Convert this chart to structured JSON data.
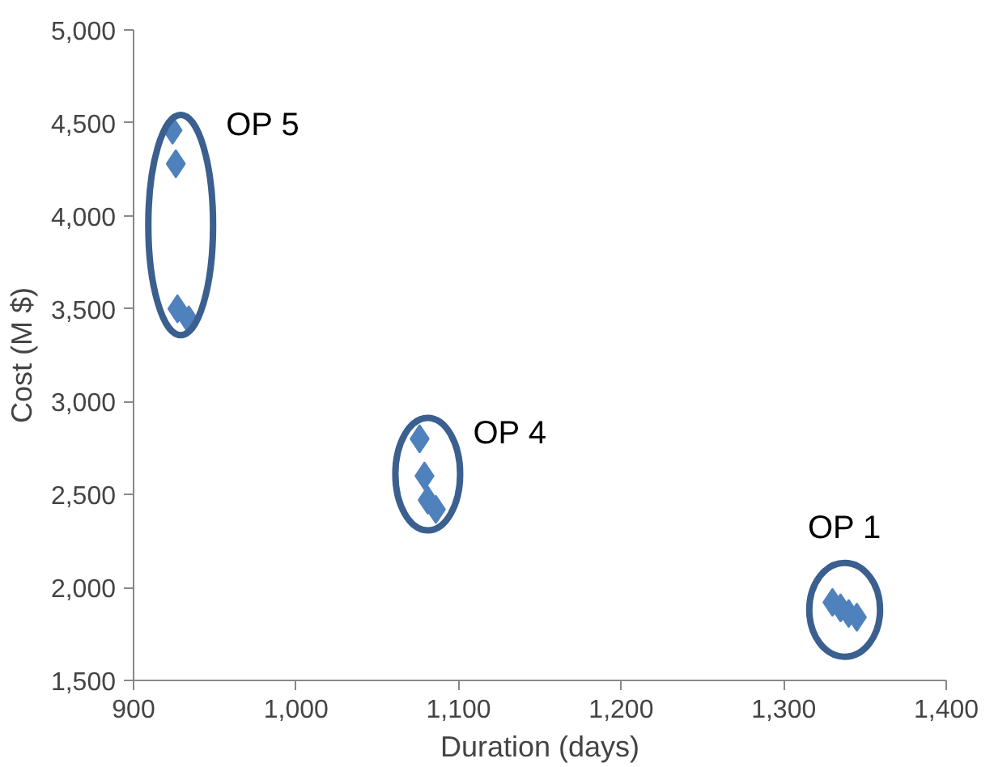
{
  "chart_data": {
    "type": "scatter",
    "xlabel": "Duration (days)",
    "ylabel": "Cost (M $)",
    "series": [
      {
        "color": "#4f81bd",
        "x": [
          924,
          926,
          927,
          934
        ],
        "values": [
          4460,
          4280,
          3500,
          3440
        ]
      },
      {
        "color": "#4f81bd",
        "x": [
          1076,
          1079,
          1081,
          1086
        ],
        "values": [
          2800,
          2600,
          2470,
          2420
        ]
      },
      {
        "color": "#4f81bd",
        "x": [
          1330,
          1335,
          1340,
          1345
        ],
        "values": [
          1920,
          1890,
          1860,
          1840
        ]
      }
    ],
    "annotations": [
      "OP 5",
      "OP 4",
      "OP 1"
    ],
    "xlim": [
      900,
      1400
    ],
    "xticks": [
      {
        "value": 900,
        "label": "900"
      },
      {
        "value": 1000,
        "label": "1,000"
      },
      {
        "value": 1100,
        "label": "1,100"
      },
      {
        "value": 1200,
        "label": "1,200"
      },
      {
        "value": 1300,
        "label": "1,300"
      },
      {
        "value": 1400,
        "label": "1,400"
      }
    ],
    "ylim": [
      1500,
      5000
    ],
    "yticks": [
      {
        "value": 1500,
        "label": "1,500"
      },
      {
        "value": 2000,
        "label": "2,000"
      },
      {
        "value": 2500,
        "label": "2,500"
      },
      {
        "value": 3000,
        "label": "3,000"
      },
      {
        "value": 3500,
        "label": "3,500"
      },
      {
        "value": 4000,
        "label": "4,000"
      },
      {
        "value": 4500,
        "label": "4,500"
      },
      {
        "value": 5000,
        "label": "5,000"
      }
    ],
    "grid": false,
    "marker": "diamond"
  }
}
